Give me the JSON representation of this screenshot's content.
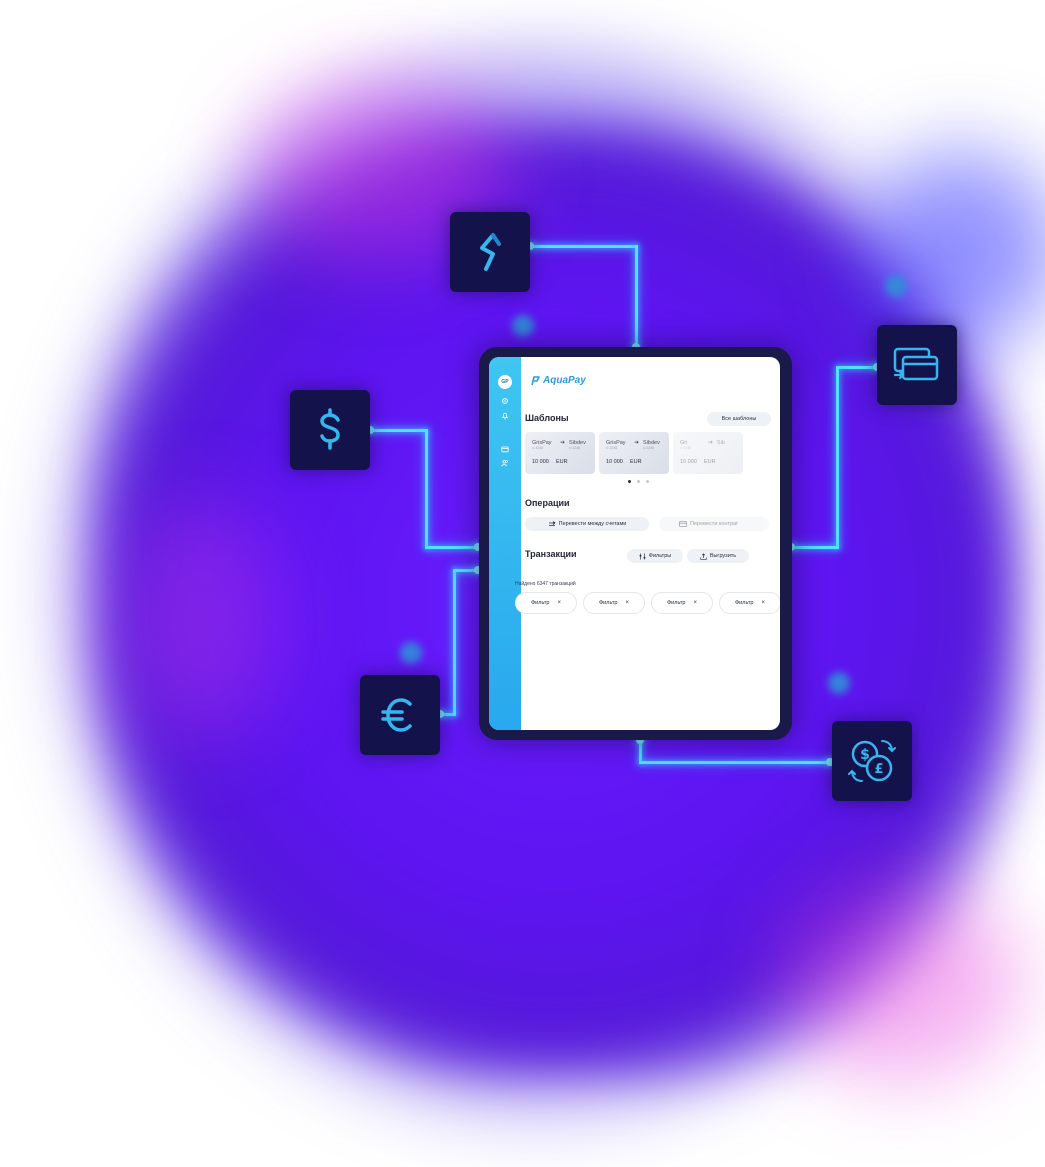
{
  "app": {
    "logo_text": "AquaPay",
    "avatar_initials": "GP"
  },
  "templates": {
    "title": "Шаблоны",
    "all_button": "Все шаблоны",
    "cards": [
      {
        "from": "GrisPay",
        "from_sub": "•• 2245",
        "to": "Sibdev",
        "to_sub": "•• 2245",
        "amount": "10 000",
        "currency": "EUR"
      },
      {
        "from": "GrisPay",
        "from_sub": "•• 2245",
        "to": "Sibdev",
        "to_sub": "•• 2245",
        "amount": "10 000",
        "currency": "EUR"
      },
      {
        "from": "Gri",
        "from_sub": "•• 2245",
        "to": "Sib",
        "to_sub": "",
        "amount": "10 000",
        "currency": "EUR"
      }
    ]
  },
  "operations": {
    "title": "Операции",
    "transfer_between": "Перевести между счетами",
    "transfer_contractor": "Перевести контраг"
  },
  "transactions": {
    "title": "Транзакции",
    "filters_button": "Фильтры",
    "export_button": "Выгрузить",
    "found_text": "Найдено 6347 транзакций",
    "chips": [
      "Фильтр",
      "Фильтр",
      "Фильтр",
      "Фильтр"
    ],
    "chip_close": "×"
  },
  "colors": {
    "accent": "#2d9bd8",
    "background_glow": "#5d14f0",
    "connector": "#4fe3ff",
    "tile": "#14124a"
  },
  "icons": [
    "aquapay-s-logo-icon",
    "dollar-icon",
    "cards-transfer-icon",
    "euro-icon",
    "currency-exchange-icon"
  ]
}
